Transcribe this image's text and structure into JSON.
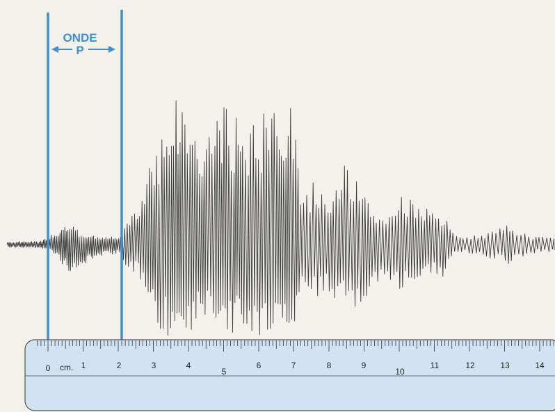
{
  "annotation": {
    "word": "ONDE",
    "letter": "P",
    "color": "#3f8fd2"
  },
  "seismogram": {
    "color": "#3a3a3a"
  },
  "ruler": {
    "unit_label": "cm.",
    "numbers": [
      "0",
      "1",
      "2",
      "3",
      "4",
      "5",
      "6",
      "7",
      "8",
      "9",
      "10",
      "11",
      "12",
      "13",
      "14"
    ],
    "fill": "#cfe3f2",
    "edge": "#555555"
  }
}
